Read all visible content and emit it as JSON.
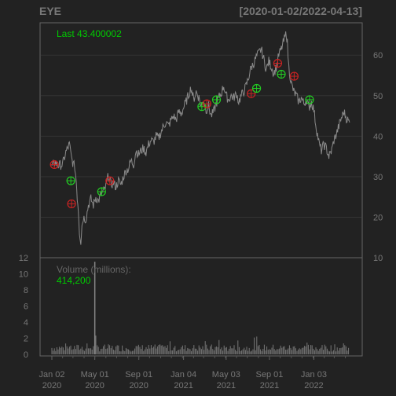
{
  "chart_data": {
    "type": "line",
    "title": "EYE",
    "date_range": "[2020-01-02/2022-04-13]",
    "last_label": "Last 43.400002",
    "volume_label": "Volume (millions):",
    "volume_value": "414,200",
    "price_axis": {
      "ticks": [
        "10",
        "20",
        "30",
        "40",
        "50",
        "60"
      ],
      "range": [
        10,
        68
      ]
    },
    "volume_axis": {
      "ticks": [
        "0",
        "2",
        "4",
        "6",
        "8",
        "10",
        "12"
      ],
      "range": [
        0,
        12
      ]
    },
    "x_axis": {
      "range": [
        "2020-01-02",
        "2022-04-13"
      ],
      "ticks": [
        {
          "date": "2020-01-02",
          "line1": "Jan 02",
          "line2": "2020"
        },
        {
          "date": "2020-05-01",
          "line1": "May 01",
          "line2": "2020"
        },
        {
          "date": "2020-09-01",
          "line1": "Sep 01",
          "line2": "2020"
        },
        {
          "date": "2021-01-04",
          "line1": "Jan 04",
          "line2": "2021"
        },
        {
          "date": "2021-05-03",
          "line1": "May 03",
          "line2": "2021"
        },
        {
          "date": "2021-09-01",
          "line1": "Sep 01",
          "line2": "2021"
        },
        {
          "date": "2022-01-03",
          "line1": "Jan 03",
          "line2": "2022"
        }
      ]
    },
    "price_series": [
      [
        "2020-01-02",
        32.5
      ],
      [
        "2020-01-10",
        33.5
      ],
      [
        "2020-01-20",
        32.8
      ],
      [
        "2020-02-01",
        33.0
      ],
      [
        "2020-02-10",
        36.0
      ],
      [
        "2020-02-20",
        38.0
      ],
      [
        "2020-02-26",
        34.5
      ],
      [
        "2020-03-02",
        33.0
      ],
      [
        "2020-03-06",
        32.5
      ],
      [
        "2020-03-10",
        29.0
      ],
      [
        "2020-03-13",
        25.0
      ],
      [
        "2020-03-16",
        22.0
      ],
      [
        "2020-03-19",
        16.5
      ],
      [
        "2020-03-23",
        14.0
      ],
      [
        "2020-03-26",
        18.0
      ],
      [
        "2020-03-30",
        20.0
      ],
      [
        "2020-04-06",
        19.5
      ],
      [
        "2020-04-13",
        23.0
      ],
      [
        "2020-04-20",
        24.5
      ],
      [
        "2020-04-27",
        23.0
      ],
      [
        "2020-05-04",
        25.0
      ],
      [
        "2020-05-11",
        24.0
      ],
      [
        "2020-05-18",
        25.5
      ],
      [
        "2020-05-26",
        26.5
      ],
      [
        "2020-06-01",
        27.5
      ],
      [
        "2020-06-08",
        30.5
      ],
      [
        "2020-06-15",
        28.0
      ],
      [
        "2020-06-22",
        28.5
      ],
      [
        "2020-06-29",
        27.5
      ],
      [
        "2020-07-06",
        29.0
      ],
      [
        "2020-07-13",
        28.0
      ],
      [
        "2020-07-20",
        30.0
      ],
      [
        "2020-07-27",
        31.5
      ],
      [
        "2020-08-03",
        32.0
      ],
      [
        "2020-08-10",
        34.0
      ],
      [
        "2020-08-17",
        33.0
      ],
      [
        "2020-08-24",
        36.5
      ],
      [
        "2020-08-31",
        35.5
      ],
      [
        "2020-09-08",
        36.5
      ],
      [
        "2020-09-14",
        37.0
      ],
      [
        "2020-09-21",
        36.0
      ],
      [
        "2020-09-28",
        38.0
      ],
      [
        "2020-10-05",
        39.0
      ],
      [
        "2020-10-12",
        38.5
      ],
      [
        "2020-10-19",
        40.0
      ],
      [
        "2020-10-26",
        39.5
      ],
      [
        "2020-11-02",
        41.0
      ],
      [
        "2020-11-09",
        42.5
      ],
      [
        "2020-11-16",
        43.5
      ],
      [
        "2020-11-23",
        42.5
      ],
      [
        "2020-11-30",
        44.0
      ],
      [
        "2020-12-07",
        45.0
      ],
      [
        "2020-12-14",
        44.0
      ],
      [
        "2020-12-21",
        46.0
      ],
      [
        "2020-12-28",
        45.5
      ],
      [
        "2021-01-04",
        47.0
      ],
      [
        "2021-01-11",
        48.5
      ],
      [
        "2021-01-19",
        50.5
      ],
      [
        "2021-01-25",
        52.0
      ],
      [
        "2021-02-01",
        49.0
      ],
      [
        "2021-02-08",
        51.0
      ],
      [
        "2021-02-16",
        49.5
      ],
      [
        "2021-02-22",
        47.5
      ],
      [
        "2021-03-01",
        49.0
      ],
      [
        "2021-03-08",
        46.5
      ],
      [
        "2021-03-15",
        47.5
      ],
      [
        "2021-03-22",
        45.0
      ],
      [
        "2021-03-29",
        46.0
      ],
      [
        "2021-04-05",
        48.0
      ],
      [
        "2021-04-12",
        49.5
      ],
      [
        "2021-04-19",
        50.5
      ],
      [
        "2021-04-26",
        52.5
      ],
      [
        "2021-05-03",
        50.0
      ],
      [
        "2021-05-10",
        49.0
      ],
      [
        "2021-05-17",
        50.0
      ],
      [
        "2021-05-24",
        49.5
      ],
      [
        "2021-06-01",
        50.5
      ],
      [
        "2021-06-07",
        48.5
      ],
      [
        "2021-06-14",
        50.0
      ],
      [
        "2021-06-21",
        51.0
      ],
      [
        "2021-06-28",
        52.5
      ],
      [
        "2021-07-06",
        55.0
      ],
      [
        "2021-07-12",
        57.0
      ],
      [
        "2021-07-19",
        58.0
      ],
      [
        "2021-07-26",
        59.5
      ],
      [
        "2021-08-02",
        60.5
      ],
      [
        "2021-08-09",
        61.5
      ],
      [
        "2021-08-16",
        59.0
      ],
      [
        "2021-08-23",
        56.5
      ],
      [
        "2021-08-30",
        58.5
      ],
      [
        "2021-09-07",
        57.0
      ],
      [
        "2021-09-13",
        55.5
      ],
      [
        "2021-09-20",
        57.0
      ],
      [
        "2021-09-27",
        60.0
      ],
      [
        "2021-10-04",
        61.5
      ],
      [
        "2021-10-11",
        63.5
      ],
      [
        "2021-10-18",
        65.5
      ],
      [
        "2021-10-21",
        63.0
      ],
      [
        "2021-10-25",
        57.0
      ],
      [
        "2021-11-01",
        53.0
      ],
      [
        "2021-11-08",
        51.0
      ],
      [
        "2021-11-15",
        50.0
      ],
      [
        "2021-11-22",
        48.5
      ],
      [
        "2021-11-29",
        49.5
      ],
      [
        "2021-12-06",
        48.0
      ],
      [
        "2021-12-13",
        49.0
      ],
      [
        "2021-12-20",
        47.0
      ],
      [
        "2021-12-27",
        48.5
      ],
      [
        "2022-01-03",
        46.5
      ],
      [
        "2022-01-10",
        42.0
      ],
      [
        "2022-01-18",
        38.0
      ],
      [
        "2022-01-24",
        36.5
      ],
      [
        "2022-01-31",
        38.0
      ],
      [
        "2022-02-07",
        37.0
      ],
      [
        "2022-02-14",
        35.0
      ],
      [
        "2022-02-22",
        36.5
      ],
      [
        "2022-02-28",
        39.0
      ],
      [
        "2022-03-07",
        40.5
      ],
      [
        "2022-03-14",
        42.5
      ],
      [
        "2022-03-21",
        44.5
      ],
      [
        "2022-03-28",
        46.0
      ],
      [
        "2022-04-04",
        44.5
      ],
      [
        "2022-04-11",
        43.5
      ],
      [
        "2022-04-13",
        43.4
      ]
    ],
    "markers": [
      {
        "date": "2020-01-09",
        "price": 33.0,
        "signal": "sell",
        "color": "#cc2222"
      },
      {
        "date": "2020-02-24",
        "price": 29.0,
        "signal": "buy",
        "color": "#22cc22"
      },
      {
        "date": "2020-02-26",
        "price": 23.3,
        "signal": "sell",
        "color": "#cc2222"
      },
      {
        "date": "2020-05-20",
        "price": 26.3,
        "signal": "buy",
        "color": "#22cc22"
      },
      {
        "date": "2020-06-12",
        "price": 29.0,
        "signal": "sell",
        "color": "#cc2222"
      },
      {
        "date": "2021-02-24",
        "price": 47.3,
        "signal": "buy",
        "color": "#22cc22"
      },
      {
        "date": "2021-03-10",
        "price": 48.0,
        "signal": "sell",
        "color": "#cc2222"
      },
      {
        "date": "2021-04-06",
        "price": 49.0,
        "signal": "buy",
        "color": "#22cc22"
      },
      {
        "date": "2021-07-12",
        "price": 50.5,
        "signal": "sell",
        "color": "#cc2222"
      },
      {
        "date": "2021-07-27",
        "price": 51.8,
        "signal": "buy",
        "color": "#22cc22"
      },
      {
        "date": "2021-09-24",
        "price": 58.0,
        "signal": "sell",
        "color": "#cc2222"
      },
      {
        "date": "2021-10-04",
        "price": 55.3,
        "signal": "buy",
        "color": "#22cc22"
      },
      {
        "date": "2021-11-09",
        "price": 54.8,
        "signal": "sell",
        "color": "#cc2222"
      },
      {
        "date": "2021-12-22",
        "price": 49.0,
        "signal": "buy",
        "color": "#22cc22"
      }
    ],
    "volume_spike": {
      "date": "2020-05-01",
      "value": 11.5
    },
    "colors": {
      "background": "#222222",
      "panel_border": "#666666",
      "grid": "#333333",
      "line": "#8a8a8a",
      "text": "#777777",
      "highlight": "#00cc00"
    },
    "grid": true
  }
}
